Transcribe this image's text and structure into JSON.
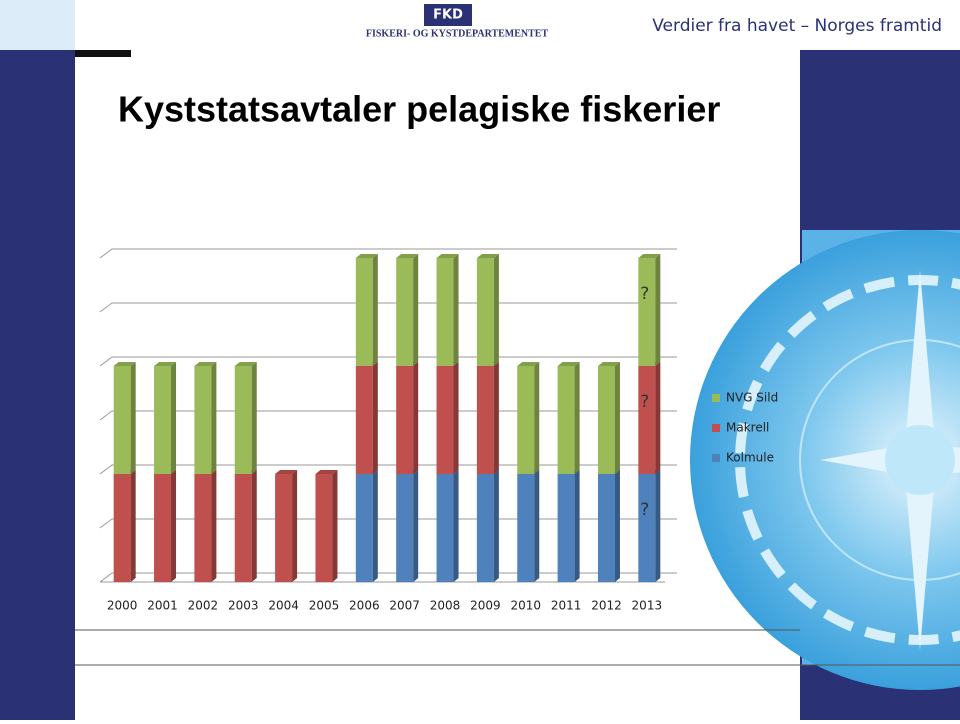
{
  "header": {
    "logo": "FKD",
    "department": "FISKERI- OG KYSTDEPARTEMENTET",
    "slogan": "Verdier fra havet – Norges framtid"
  },
  "chart_data": {
    "type": "bar",
    "stacked": true,
    "title": "Kyststatsavtaler pelagiske fiskerier",
    "categories": [
      "2000",
      "2001",
      "2002",
      "2003",
      "2004",
      "2005",
      "2006",
      "2007",
      "2008",
      "2009",
      "2010",
      "2011",
      "2012",
      "2013"
    ],
    "series": [
      {
        "name": "Kolmule",
        "color": "#4f81bd",
        "values": [
          0,
          0,
          0,
          0,
          0,
          0,
          2,
          2,
          2,
          2,
          2,
          2,
          2,
          2
        ]
      },
      {
        "name": "Makrell",
        "color": "#c0504d",
        "values": [
          2,
          2,
          2,
          2,
          2,
          2,
          2,
          2,
          2,
          2,
          0,
          0,
          0,
          2
        ]
      },
      {
        "name": "NVG Sild",
        "color": "#9bbb59",
        "values": [
          2,
          2,
          2,
          2,
          0,
          0,
          2,
          2,
          2,
          2,
          2,
          2,
          2,
          2
        ]
      }
    ],
    "annotations": [
      "?",
      "?",
      "?"
    ],
    "ylim": [
      0,
      6
    ],
    "yticks": [
      0,
      1,
      2,
      3,
      4,
      5,
      6
    ],
    "grid": true,
    "legend": "right"
  }
}
